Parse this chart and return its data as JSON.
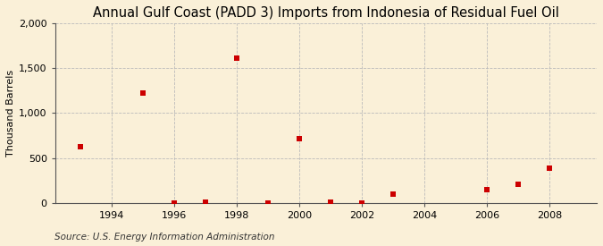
{
  "title": "Annual Gulf Coast (PADD 3) Imports from Indonesia of Residual Fuel Oil",
  "ylabel": "Thousand Barrels",
  "source": "Source: U.S. Energy Information Administration",
  "years": [
    1993,
    1995,
    1996,
    1997,
    1998,
    1999,
    2000,
    2001,
    2002,
    2003,
    2006,
    2007,
    2008
  ],
  "values": [
    630,
    1220,
    5,
    10,
    1610,
    5,
    720,
    10,
    5,
    100,
    150,
    205,
    390
  ],
  "xlim": [
    1992.2,
    2009.5
  ],
  "ylim": [
    0,
    2000
  ],
  "yticks": [
    0,
    500,
    1000,
    1500,
    2000
  ],
  "xticks": [
    1994,
    1996,
    1998,
    2000,
    2002,
    2004,
    2006,
    2008
  ],
  "marker_color": "#cc0000",
  "marker_size": 4,
  "bg_color": "#faf0d8",
  "grid_color": "#bbbbbb",
  "title_fontsize": 10.5,
  "label_fontsize": 8,
  "tick_fontsize": 8,
  "source_fontsize": 7.5
}
